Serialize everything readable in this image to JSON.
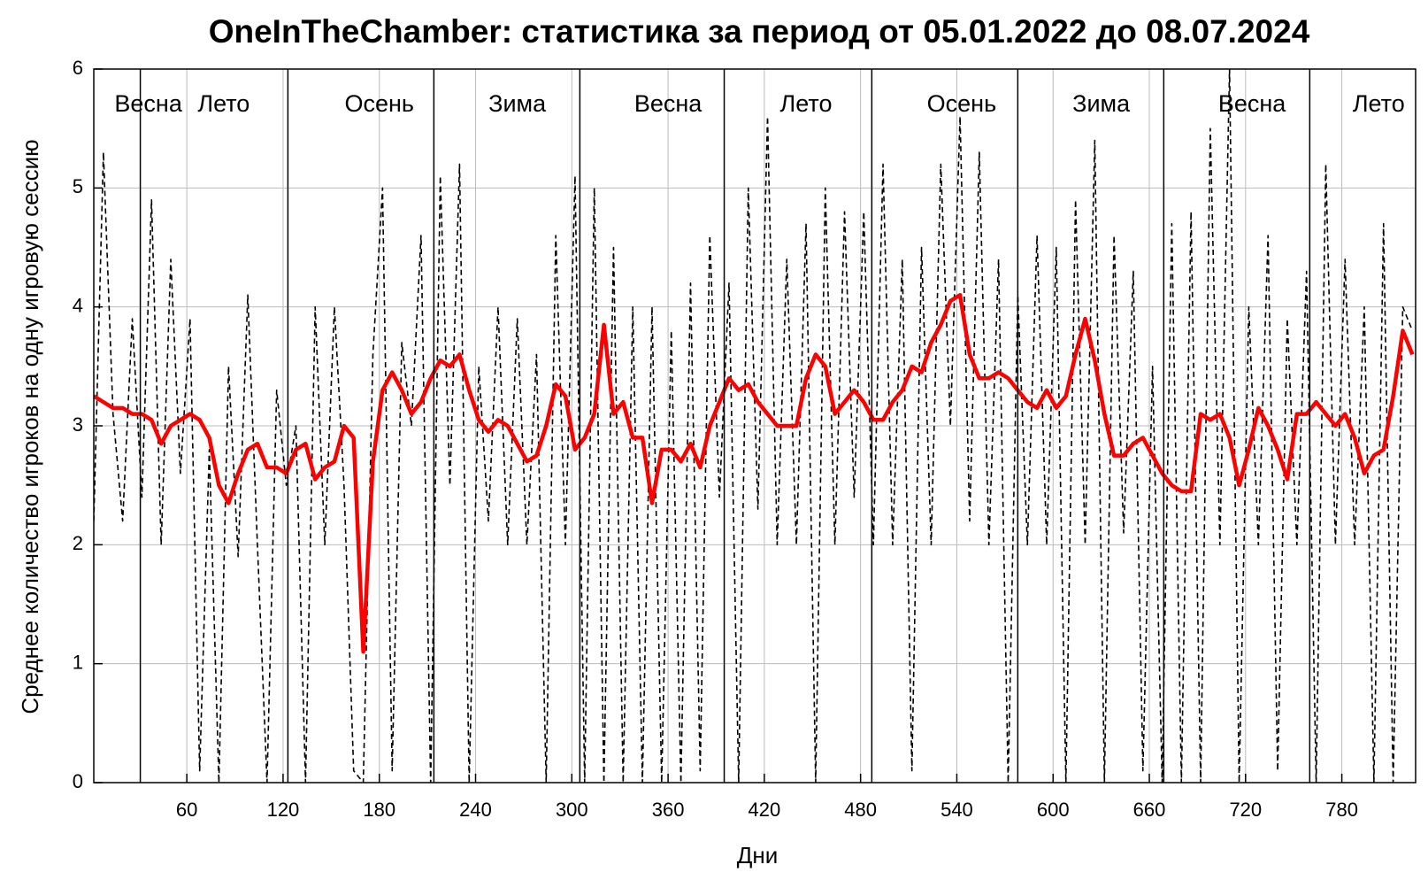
{
  "chart_data": {
    "type": "line",
    "title": "OneInTheChamber: статистика за период от 05.01.2022 до 08.07.2024",
    "xlabel": "Дни",
    "ylabel": "Среднее количество игроков на одну игровую сессию",
    "xlim": [
      2,
      826
    ],
    "ylim": [
      0,
      6
    ],
    "xticks": [
      60,
      120,
      180,
      240,
      300,
      360,
      420,
      480,
      540,
      600,
      660,
      720,
      780
    ],
    "yticks": [
      0,
      1,
      2,
      3,
      4,
      5,
      6
    ],
    "grid": true,
    "season_boundaries": [
      31,
      123,
      214,
      305,
      395,
      487,
      578,
      669,
      760
    ],
    "annotations": [
      {
        "text": "Весна",
        "x": 36
      },
      {
        "text": "Лето",
        "x": 83
      },
      {
        "text": "Осень",
        "x": 180
      },
      {
        "text": "Зима",
        "x": 266
      },
      {
        "text": "Весна",
        "x": 360
      },
      {
        "text": "Лето",
        "x": 446
      },
      {
        "text": "Осень",
        "x": 543
      },
      {
        "text": "Зима",
        "x": 630
      },
      {
        "text": "Весна",
        "x": 724
      },
      {
        "text": "Лето",
        "x": 803
      }
    ],
    "x": [
      2,
      8,
      14,
      20,
      26,
      32,
      38,
      44,
      50,
      56,
      62,
      68,
      74,
      80,
      86,
      92,
      98,
      104,
      110,
      116,
      122,
      128,
      134,
      140,
      146,
      152,
      158,
      164,
      170,
      176,
      182,
      188,
      194,
      200,
      206,
      212,
      218,
      224,
      230,
      236,
      242,
      248,
      254,
      260,
      266,
      272,
      278,
      284,
      290,
      296,
      302,
      308,
      314,
      320,
      326,
      332,
      338,
      344,
      350,
      356,
      362,
      368,
      374,
      380,
      386,
      392,
      398,
      404,
      410,
      416,
      422,
      428,
      434,
      440,
      446,
      452,
      458,
      464,
      470,
      476,
      482,
      488,
      494,
      500,
      506,
      512,
      518,
      524,
      530,
      536,
      542,
      548,
      554,
      560,
      566,
      572,
      578,
      584,
      590,
      596,
      602,
      608,
      614,
      620,
      626,
      632,
      638,
      644,
      650,
      656,
      662,
      668,
      674,
      680,
      686,
      692,
      698,
      704,
      710,
      716,
      722,
      728,
      734,
      740,
      746,
      752,
      758,
      764,
      770,
      776,
      782,
      788,
      794,
      800,
      806,
      812,
      818,
      824
    ],
    "series": [
      {
        "color": "#000000",
        "line_style": "dashed",
        "values": [
          2.2,
          5.3,
          3.1,
          2.2,
          3.9,
          2.4,
          4.9,
          2.0,
          4.4,
          2.6,
          3.9,
          0.1,
          2.8,
          0,
          3.5,
          1.9,
          4.1,
          2.0,
          0,
          3.3,
          2.5,
          3.0,
          0,
          4.0,
          2.0,
          4.0,
          2.5,
          0.1,
          0,
          3.6,
          5.0,
          0.1,
          3.7,
          3.0,
          4.6,
          0,
          5.1,
          2.5,
          5.2,
          0,
          3.5,
          2.2,
          4.0,
          2.0,
          3.9,
          2.0,
          3.6,
          0,
          4.6,
          2.0,
          5.1,
          0,
          5.0,
          0,
          4.5,
          0,
          4.0,
          0,
          4.0,
          0,
          3.8,
          0,
          4.2,
          0.1,
          4.6,
          2.4,
          4.2,
          0,
          5.0,
          2.3,
          5.6,
          2.0,
          4.4,
          2.0,
          4.7,
          0,
          5.0,
          2.0,
          4.8,
          2.4,
          4.8,
          2.0,
          5.2,
          2.0,
          4.4,
          0.1,
          4.5,
          2.0,
          5.2,
          3.0,
          5.6,
          2.2,
          5.3,
          2.0,
          4.4,
          0,
          4.1,
          2.0,
          4.6,
          2.0,
          4.5,
          0,
          4.9,
          2.0,
          5.4,
          0,
          4.6,
          2.1,
          4.3,
          0.1,
          3.5,
          0,
          4.7,
          0,
          4.8,
          0,
          5.5,
          2.0,
          6.0,
          0,
          4.0,
          2.0,
          4.6,
          0.1,
          3.9,
          2.0,
          4.3,
          0,
          5.2,
          2.0,
          4.4,
          2.0,
          4.0,
          0,
          4.7,
          0,
          4.0,
          3.8
        ]
      },
      {
        "color": "#ff0000",
        "line_style": "solid",
        "values": [
          3.25,
          3.2,
          3.15,
          3.15,
          3.1,
          3.1,
          3.05,
          2.85,
          3.0,
          3.05,
          3.1,
          3.05,
          2.9,
          2.5,
          2.35,
          2.6,
          2.8,
          2.85,
          2.65,
          2.65,
          2.6,
          2.8,
          2.85,
          2.55,
          2.65,
          2.7,
          3.0,
          2.9,
          1.1,
          2.7,
          3.3,
          3.45,
          3.3,
          3.1,
          3.2,
          3.4,
          3.55,
          3.5,
          3.6,
          3.3,
          3.05,
          2.95,
          3.05,
          3.0,
          2.85,
          2.7,
          2.75,
          3.0,
          3.35,
          3.25,
          2.8,
          2.9,
          3.1,
          3.85,
          3.1,
          3.2,
          2.9,
          2.9,
          2.35,
          2.8,
          2.8,
          2.7,
          2.85,
          2.65,
          3.0,
          3.2,
          3.4,
          3.3,
          3.35,
          3.2,
          3.1,
          3.0,
          3.0,
          3.0,
          3.4,
          3.6,
          3.5,
          3.1,
          3.2,
          3.3,
          3.2,
          3.05,
          3.05,
          3.2,
          3.3,
          3.5,
          3.45,
          3.7,
          3.85,
          4.05,
          4.1,
          3.6,
          3.4,
          3.4,
          3.45,
          3.4,
          3.3,
          3.2,
          3.15,
          3.3,
          3.15,
          3.25,
          3.6,
          3.9,
          3.55,
          3.1,
          2.75,
          2.75,
          2.85,
          2.9,
          2.75,
          2.6,
          2.5,
          2.45,
          2.45,
          3.1,
          3.05,
          3.1,
          2.9,
          2.5,
          2.8,
          3.15,
          3.0,
          2.8,
          2.55,
          3.1,
          3.1,
          3.2,
          3.1,
          3.0,
          3.1,
          2.9,
          2.6,
          2.75,
          2.8,
          3.25,
          3.8,
          3.6
        ]
      }
    ]
  }
}
